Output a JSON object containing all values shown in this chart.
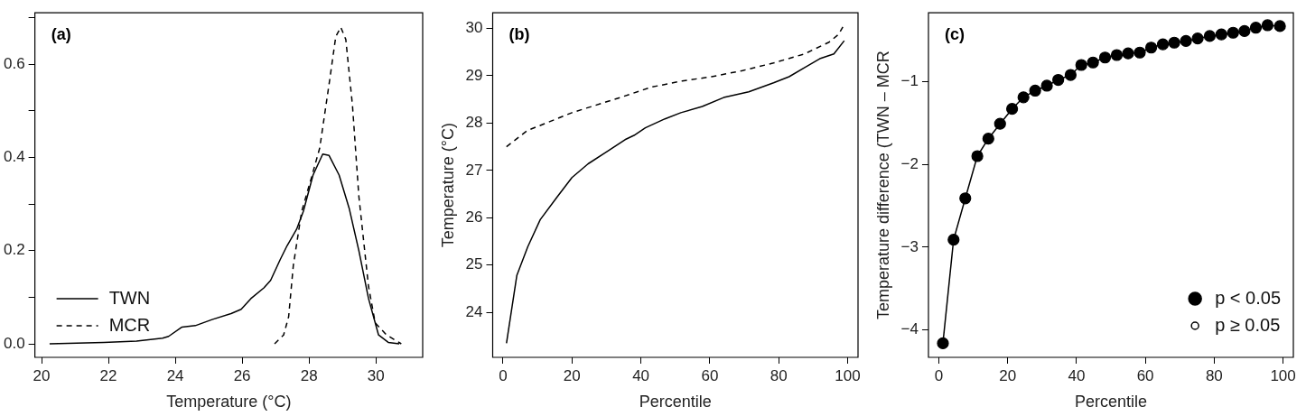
{
  "chart_data": [
    {
      "type": "line",
      "annotations": [
        "(a)"
      ],
      "xlabel": "Temperature (°C)",
      "xlim": [
        19.8,
        31.4
      ],
      "xticks": [
        20,
        22,
        24,
        26,
        28,
        30
      ],
      "ylim": [
        -0.029,
        0.71
      ],
      "yticks": [
        {
          "value": 0,
          "label": "0.0"
        },
        {
          "value": 0.1,
          "label": null
        },
        {
          "value": 0.2,
          "label": "0.2"
        },
        {
          "value": 0.3,
          "label": null
        },
        {
          "value": 0.4,
          "label": "0.4"
        },
        {
          "value": 0.5,
          "label": null
        },
        {
          "value": 0.6,
          "label": "0.6"
        },
        {
          "value": 0.7,
          "label": null
        }
      ],
      "grid": false,
      "legend": "bottom left",
      "series": [
        {
          "name": "TWN",
          "color": "#000000",
          "line_style": "solid",
          "x": [
            20.24,
            21.86,
            22.84,
            23.62,
            23.8,
            24.2,
            24.6,
            25.1,
            25.67,
            25.97,
            26.26,
            26.65,
            26.85,
            27.14,
            27.34,
            27.63,
            27.83,
            28.12,
            28.41,
            28.6,
            28.9,
            29.2,
            29.49,
            29.78,
            30.08,
            30.37,
            30.7
          ],
          "values": [
            0,
            0.003,
            0.006,
            0.012,
            0.016,
            0.036,
            0.039,
            0.052,
            0.065,
            0.074,
            0.097,
            0.12,
            0.136,
            0.181,
            0.21,
            0.246,
            0.284,
            0.362,
            0.407,
            0.404,
            0.362,
            0.291,
            0.2,
            0.097,
            0.019,
            0.003,
            0
          ]
        },
        {
          "name": "MCR",
          "color": "#000000",
          "line_style": "dashed",
          "x": [
            26.97,
            27.24,
            27.39,
            27.53,
            27.78,
            28.07,
            28.32,
            28.61,
            28.8,
            28.95,
            29.1,
            29.3,
            29.49,
            29.78,
            29.98,
            30.32,
            30.76
          ],
          "values": [
            0,
            0.019,
            0.058,
            0.168,
            0.284,
            0.356,
            0.42,
            0.562,
            0.659,
            0.679,
            0.653,
            0.511,
            0.317,
            0.123,
            0.045,
            0.019,
            0
          ]
        }
      ]
    },
    {
      "type": "line",
      "annotations": [
        "(b)"
      ],
      "xlabel": "Percentile",
      "ylabel": "Temperature (°C)",
      "xlim": [
        -3,
        103
      ],
      "xticks": [
        0,
        20,
        40,
        60,
        80,
        100
      ],
      "ylim": [
        23.05,
        30.33
      ],
      "yticks": [
        24,
        25,
        26,
        27,
        28,
        29,
        30
      ],
      "grid": false,
      "series": [
        {
          "color": "#000000",
          "line_style": "solid",
          "x": [
            1,
            4,
            7.2,
            10.8,
            15.7,
            20,
            24.7,
            30,
            35.4,
            38,
            41.3,
            47,
            51.6,
            57.8,
            64,
            71.3,
            78.5,
            83,
            87.4,
            91.9,
            96,
            99
          ],
          "values": [
            23.35,
            24.78,
            25.39,
            25.96,
            26.44,
            26.85,
            27.14,
            27.39,
            27.65,
            27.74,
            27.9,
            28.09,
            28.22,
            28.35,
            28.54,
            28.66,
            28.85,
            28.98,
            29.17,
            29.36,
            29.46,
            29.74
          ]
        },
        {
          "color": "#000000",
          "line_style": "dashed",
          "x": [
            1,
            7,
            20,
            34,
            43,
            52,
            60.5,
            69.5,
            78.5,
            87.4,
            94.6,
            97.3,
            98.6
          ],
          "values": [
            27.5,
            27.84,
            28.22,
            28.54,
            28.76,
            28.89,
            28.98,
            29.11,
            29.27,
            29.46,
            29.71,
            29.87,
            30.03
          ]
        }
      ]
    },
    {
      "type": "line",
      "annotations": [
        "(c)"
      ],
      "xlabel": "Percentile",
      "ylabel": "Temperature difference (TWN – MCR",
      "xlim": [
        -3,
        103
      ],
      "xticks": [
        0,
        20,
        40,
        60,
        80,
        100
      ],
      "ylim": [
        -4.33,
        -0.17
      ],
      "yticks": [
        {
          "value": -4,
          "label": "−4"
        },
        {
          "value": -3,
          "label": "−3"
        },
        {
          "value": -2,
          "label": "−2"
        },
        {
          "value": -1,
          "label": "−1"
        }
      ],
      "grid": false,
      "legend": "bottom right",
      "marker": "circle",
      "series": [
        {
          "name": "p < 0.05",
          "color": "#000000",
          "line_style": "solid",
          "x": [
            1.2,
            4.3,
            7.7,
            11.2,
            14.4,
            17.8,
            21.3,
            24.6,
            28,
            31.4,
            34.7,
            38.3,
            41.4,
            44.8,
            48.3,
            51.7,
            55,
            58.4,
            61.7,
            65.1,
            68.4,
            71.8,
            75.2,
            78.7,
            82.1,
            85.5,
            88.8,
            92.1,
            95.5,
            99.1
          ],
          "values": [
            -4.16,
            -2.91,
            -2.41,
            -1.9,
            -1.69,
            -1.51,
            -1.33,
            -1.19,
            -1.11,
            -1.05,
            -0.98,
            -0.92,
            -0.8,
            -0.77,
            -0.71,
            -0.68,
            -0.66,
            -0.65,
            -0.59,
            -0.55,
            -0.53,
            -0.51,
            -0.48,
            -0.45,
            -0.43,
            -0.41,
            -0.39,
            -0.35,
            -0.32,
            -0.33
          ]
        },
        {
          "name": "p ≥ 0.05",
          "type": "scatter",
          "color": "#000000"
        }
      ]
    }
  ]
}
